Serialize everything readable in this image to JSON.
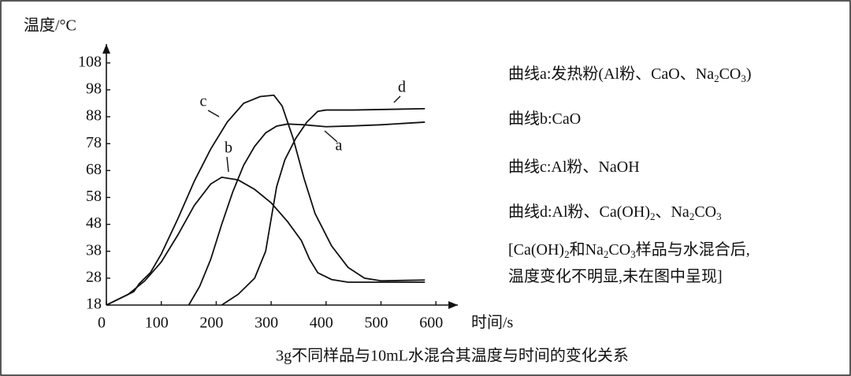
{
  "chart_data": {
    "type": "line",
    "caption": "3g不同样品与10mL水混合其温度与时间的变化关系",
    "x_label": "时间/s",
    "y_label": "温度/°C",
    "xlim": [
      0,
      640
    ],
    "ylim": [
      18,
      115
    ],
    "xticks": [
      0,
      100,
      200,
      300,
      400,
      500,
      600
    ],
    "yticks": [
      18,
      28,
      38,
      48,
      58,
      68,
      78,
      88,
      98,
      108
    ],
    "color": "#111111",
    "series": [
      {
        "name": "a",
        "x": [
          150,
          170,
          190,
          210,
          230,
          250,
          270,
          290,
          310,
          330,
          360,
          400,
          450,
          500,
          580
        ],
        "values": [
          18,
          25,
          35,
          48,
          60,
          70,
          77,
          82,
          84.5,
          85.3,
          85,
          84.3,
          84.6,
          85,
          86
        ]
      },
      {
        "name": "b",
        "x": [
          0,
          40,
          70,
          100,
          130,
          160,
          190,
          210,
          240,
          270,
          300,
          330,
          355,
          370,
          385,
          410,
          440,
          580
        ],
        "values": [
          18,
          22,
          27,
          34,
          44,
          55,
          63,
          65.5,
          64.5,
          61,
          56,
          49,
          42,
          35,
          30,
          27.5,
          26.5,
          26.5
        ]
      },
      {
        "name": "c",
        "x": [
          0,
          30,
          50,
          60,
          80,
          100,
          130,
          160,
          190,
          220,
          250,
          280,
          305,
          320,
          340,
          360,
          380,
          410,
          440,
          470,
          500,
          580
        ],
        "values": [
          18,
          21,
          23,
          26,
          30,
          37,
          50,
          64,
          76,
          86,
          93,
          95.5,
          96,
          92,
          80,
          65,
          52,
          40,
          32,
          28,
          27,
          27.3
        ]
      },
      {
        "name": "d",
        "x": [
          210,
          240,
          270,
          290,
          300,
          310,
          325,
          345,
          365,
          385,
          400,
          450,
          580
        ],
        "values": [
          18,
          22,
          28,
          38,
          50,
          62,
          72,
          80,
          86,
          90,
          90.5,
          90.5,
          91
        ]
      }
    ],
    "notes": [
      [
        "曲线a:发热粉(Al粉、CaO、Na",
        "2",
        "CO",
        "3",
        ")"
      ],
      [
        "曲线b:CaO"
      ],
      [
        "曲线c:Al粉、NaOH"
      ],
      [
        "曲线d:Al粉、Ca(OH)",
        "2",
        "、Na",
        "2",
        "CO",
        "3"
      ],
      [
        "[Ca(OH)",
        "2",
        "和Na",
        "2",
        "CO",
        "3",
        "样品与水混合后,"
      ],
      [
        "温度变化不明显,未在图中呈现]"
      ]
    ]
  }
}
